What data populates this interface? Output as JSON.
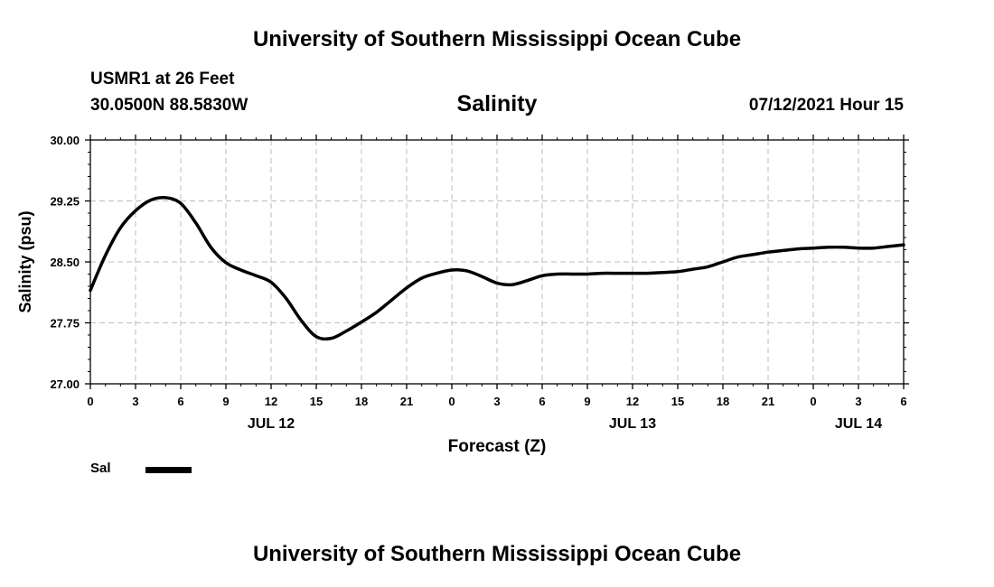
{
  "header": {
    "title": "University of Southern Mississippi Ocean Cube",
    "station": "USMR1 at 26 Feet",
    "coordinates": "30.0500N  88.5830W",
    "variable": "Salinity",
    "timestamp": "07/12/2021 Hour 15"
  },
  "footer": {
    "title": "University of Southern Mississippi Ocean Cube"
  },
  "legend": {
    "label": "Sal",
    "color": "#000000"
  },
  "chart_data": {
    "type": "line",
    "title": "Salinity",
    "xlabel": "Forecast (Z)",
    "ylabel": "Salinity (psu)",
    "xlim": [
      0,
      54
    ],
    "ylim": [
      27.0,
      30.0
    ],
    "grid": true,
    "x_ticks": [
      0,
      3,
      6,
      9,
      12,
      15,
      18,
      21,
      24,
      27,
      30,
      33,
      36,
      39,
      42,
      45,
      48,
      51,
      54
    ],
    "x_tick_labels": [
      "0",
      "3",
      "6",
      "9",
      "12",
      "15",
      "18",
      "21",
      "0",
      "3",
      "6",
      "9",
      "12",
      "15",
      "18",
      "21",
      "0",
      "3",
      "6"
    ],
    "y_ticks": [
      27.0,
      27.75,
      28.5,
      29.25,
      30.0
    ],
    "y_tick_labels": [
      "27.00",
      "27.75",
      "28.50",
      "29.25",
      "30.00"
    ],
    "date_labels": [
      {
        "x": 12,
        "label": "JUL 12"
      },
      {
        "x": 36,
        "label": "JUL 13"
      },
      {
        "x": 51,
        "label": "JUL 14"
      }
    ],
    "series": [
      {
        "name": "Sal",
        "color": "#000000",
        "x": [
          0,
          1,
          2,
          3,
          4,
          5,
          6,
          7,
          8,
          9,
          10,
          11,
          12,
          13,
          14,
          15,
          16,
          17,
          18,
          19,
          20,
          21,
          22,
          23,
          24,
          25,
          26,
          27,
          28,
          29,
          30,
          31,
          32,
          33,
          34,
          35,
          36,
          37,
          38,
          39,
          40,
          41,
          42,
          43,
          44,
          45,
          46,
          47,
          48,
          49,
          50,
          51,
          52,
          53,
          54
        ],
        "values": [
          28.15,
          28.58,
          28.92,
          29.13,
          29.26,
          29.29,
          29.22,
          28.98,
          28.68,
          28.49,
          28.4,
          28.33,
          28.25,
          28.05,
          27.78,
          27.58,
          27.56,
          27.65,
          27.76,
          27.88,
          28.03,
          28.18,
          28.3,
          28.36,
          28.4,
          28.39,
          28.32,
          28.24,
          28.22,
          28.27,
          28.33,
          28.35,
          28.35,
          28.35,
          28.36,
          28.36,
          28.36,
          28.36,
          28.37,
          28.38,
          28.41,
          28.44,
          28.5,
          28.56,
          28.59,
          28.62,
          28.64,
          28.66,
          28.67,
          28.68,
          28.68,
          28.67,
          28.67,
          28.69,
          28.71
        ]
      }
    ]
  }
}
